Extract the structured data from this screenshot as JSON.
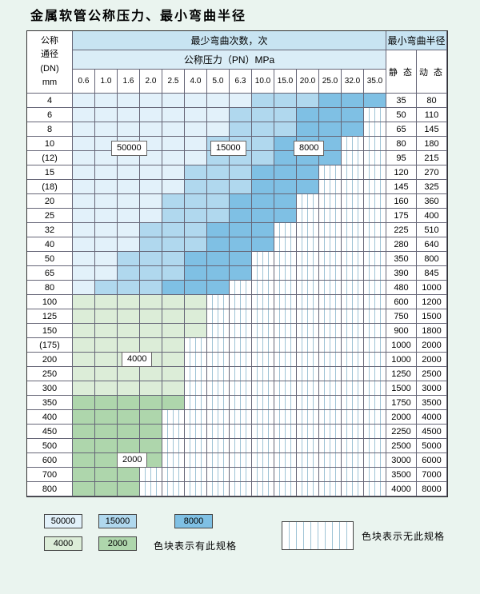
{
  "title": "金属软管公称压力、最小弯曲半径",
  "header": {
    "dn_label_lines": [
      "公称",
      "通径",
      "(DN)",
      "mm"
    ],
    "bend_cycles_label": "最少弯曲次数，次",
    "pressure_label": "公称压力（PN）MPa",
    "pressure_columns": [
      "0.6",
      "1.0",
      "1.6",
      "2.0",
      "2.5",
      "4.0",
      "5.0",
      "6.3",
      "10.0",
      "15.0",
      "20.0",
      "25.0",
      "32.0",
      "35.0"
    ],
    "radius_label": "最小弯曲半径",
    "static_label": "静 态",
    "dynamic_label": "动 态"
  },
  "colors": {
    "c50000": "#e2f1fa",
    "c15000": "#b0d8ee",
    "c8000": "#7fc0e4",
    "c4000": "#dcedd8",
    "c2000": "#aed6ac",
    "hatch_line": "#9fc3d6",
    "header1": "#c8e4f2",
    "header2": "#daedf7",
    "page_bg": "#eaf4ef"
  },
  "rows": [
    {
      "dn": "4",
      "static": "35",
      "dynamic": "80",
      "cells": [
        "50000",
        "50000",
        "50000",
        "50000",
        "50000",
        "50000",
        "50000",
        "50000",
        "15000",
        "15000",
        "15000",
        "8000",
        "8000",
        "8000"
      ]
    },
    {
      "dn": "6",
      "static": "50",
      "dynamic": "110",
      "cells": [
        "50000",
        "50000",
        "50000",
        "50000",
        "50000",
        "50000",
        "50000",
        "15000",
        "15000",
        "15000",
        "8000",
        "8000",
        "8000",
        "none"
      ]
    },
    {
      "dn": "8",
      "static": "65",
      "dynamic": "145",
      "cells": [
        "50000",
        "50000",
        "50000",
        "50000",
        "50000",
        "50000",
        "50000",
        "15000",
        "15000",
        "15000",
        "8000",
        "8000",
        "8000",
        "none"
      ]
    },
    {
      "dn": "10",
      "static": "80",
      "dynamic": "180",
      "cells": [
        "50000",
        "50000",
        "50000",
        "50000",
        "50000",
        "50000",
        "15000",
        "15000",
        "15000",
        "8000",
        "8000",
        "8000",
        "none",
        "none"
      ]
    },
    {
      "dn": "(12)",
      "static": "95",
      "dynamic": "215",
      "cells": [
        "50000",
        "50000",
        "50000",
        "50000",
        "50000",
        "50000",
        "15000",
        "15000",
        "15000",
        "8000",
        "8000",
        "8000",
        "none",
        "none"
      ]
    },
    {
      "dn": "15",
      "static": "120",
      "dynamic": "270",
      "cells": [
        "50000",
        "50000",
        "50000",
        "50000",
        "50000",
        "15000",
        "15000",
        "15000",
        "8000",
        "8000",
        "8000",
        "none",
        "none",
        "none"
      ]
    },
    {
      "dn": "(18)",
      "static": "145",
      "dynamic": "325",
      "cells": [
        "50000",
        "50000",
        "50000",
        "50000",
        "50000",
        "15000",
        "15000",
        "15000",
        "8000",
        "8000",
        "8000",
        "none",
        "none",
        "none"
      ]
    },
    {
      "dn": "20",
      "static": "160",
      "dynamic": "360",
      "cells": [
        "50000",
        "50000",
        "50000",
        "50000",
        "15000",
        "15000",
        "15000",
        "8000",
        "8000",
        "8000",
        "none",
        "none",
        "none",
        "none"
      ]
    },
    {
      "dn": "25",
      "static": "175",
      "dynamic": "400",
      "cells": [
        "50000",
        "50000",
        "50000",
        "50000",
        "15000",
        "15000",
        "15000",
        "8000",
        "8000",
        "8000",
        "none",
        "none",
        "none",
        "none"
      ]
    },
    {
      "dn": "32",
      "static": "225",
      "dynamic": "510",
      "cells": [
        "50000",
        "50000",
        "50000",
        "15000",
        "15000",
        "15000",
        "8000",
        "8000",
        "8000",
        "none",
        "none",
        "none",
        "none",
        "none"
      ]
    },
    {
      "dn": "40",
      "static": "280",
      "dynamic": "640",
      "cells": [
        "50000",
        "50000",
        "50000",
        "15000",
        "15000",
        "15000",
        "8000",
        "8000",
        "8000",
        "none",
        "none",
        "none",
        "none",
        "none"
      ]
    },
    {
      "dn": "50",
      "static": "350",
      "dynamic": "800",
      "cells": [
        "50000",
        "50000",
        "15000",
        "15000",
        "15000",
        "8000",
        "8000",
        "8000",
        "none",
        "none",
        "none",
        "none",
        "none",
        "none"
      ]
    },
    {
      "dn": "65",
      "static": "390",
      "dynamic": "845",
      "cells": [
        "50000",
        "50000",
        "15000",
        "15000",
        "15000",
        "8000",
        "8000",
        "8000",
        "none",
        "none",
        "none",
        "none",
        "none",
        "none"
      ]
    },
    {
      "dn": "80",
      "static": "480",
      "dynamic": "1000",
      "cells": [
        "50000",
        "15000",
        "15000",
        "15000",
        "8000",
        "8000",
        "8000",
        "none",
        "none",
        "none",
        "none",
        "none",
        "none",
        "none"
      ]
    },
    {
      "dn": "100",
      "static": "600",
      "dynamic": "1200",
      "cells": [
        "4000",
        "4000",
        "4000",
        "4000",
        "4000",
        "4000",
        "none",
        "none",
        "none",
        "none",
        "none",
        "none",
        "none",
        "none"
      ]
    },
    {
      "dn": "125",
      "static": "750",
      "dynamic": "1500",
      "cells": [
        "4000",
        "4000",
        "4000",
        "4000",
        "4000",
        "4000",
        "none",
        "none",
        "none",
        "none",
        "none",
        "none",
        "none",
        "none"
      ]
    },
    {
      "dn": "150",
      "static": "900",
      "dynamic": "1800",
      "cells": [
        "4000",
        "4000",
        "4000",
        "4000",
        "4000",
        "4000",
        "none",
        "none",
        "none",
        "none",
        "none",
        "none",
        "none",
        "none"
      ]
    },
    {
      "dn": "(175)",
      "static": "1000",
      "dynamic": "2000",
      "cells": [
        "4000",
        "4000",
        "4000",
        "4000",
        "4000",
        "none",
        "none",
        "none",
        "none",
        "none",
        "none",
        "none",
        "none",
        "none"
      ]
    },
    {
      "dn": "200",
      "static": "1000",
      "dynamic": "2000",
      "cells": [
        "4000",
        "4000",
        "4000",
        "4000",
        "4000",
        "none",
        "none",
        "none",
        "none",
        "none",
        "none",
        "none",
        "none",
        "none"
      ]
    },
    {
      "dn": "250",
      "static": "1250",
      "dynamic": "2500",
      "cells": [
        "4000",
        "4000",
        "4000",
        "4000",
        "4000",
        "none",
        "none",
        "none",
        "none",
        "none",
        "none",
        "none",
        "none",
        "none"
      ]
    },
    {
      "dn": "300",
      "static": "1500",
      "dynamic": "3000",
      "cells": [
        "4000",
        "4000",
        "4000",
        "4000",
        "4000",
        "none",
        "none",
        "none",
        "none",
        "none",
        "none",
        "none",
        "none",
        "none"
      ]
    },
    {
      "dn": "350",
      "static": "1750",
      "dynamic": "3500",
      "cells": [
        "2000",
        "2000",
        "2000",
        "2000",
        "2000",
        "none",
        "none",
        "none",
        "none",
        "none",
        "none",
        "none",
        "none",
        "none"
      ]
    },
    {
      "dn": "400",
      "static": "2000",
      "dynamic": "4000",
      "cells": [
        "2000",
        "2000",
        "2000",
        "2000",
        "none",
        "none",
        "none",
        "none",
        "none",
        "none",
        "none",
        "none",
        "none",
        "none"
      ]
    },
    {
      "dn": "450",
      "static": "2250",
      "dynamic": "4500",
      "cells": [
        "2000",
        "2000",
        "2000",
        "2000",
        "none",
        "none",
        "none",
        "none",
        "none",
        "none",
        "none",
        "none",
        "none",
        "none"
      ]
    },
    {
      "dn": "500",
      "static": "2500",
      "dynamic": "5000",
      "cells": [
        "2000",
        "2000",
        "2000",
        "2000",
        "none",
        "none",
        "none",
        "none",
        "none",
        "none",
        "none",
        "none",
        "none",
        "none"
      ]
    },
    {
      "dn": "600",
      "static": "3000",
      "dynamic": "6000",
      "cells": [
        "2000",
        "2000",
        "2000",
        "2000",
        "none",
        "none",
        "none",
        "none",
        "none",
        "none",
        "none",
        "none",
        "none",
        "none"
      ]
    },
    {
      "dn": "700",
      "static": "3500",
      "dynamic": "7000",
      "cells": [
        "2000",
        "2000",
        "2000",
        "none",
        "none",
        "none",
        "none",
        "none",
        "none",
        "none",
        "none",
        "none",
        "none",
        "none"
      ]
    },
    {
      "dn": "800",
      "static": "4000",
      "dynamic": "8000",
      "cells": [
        "2000",
        "2000",
        "2000",
        "none",
        "none",
        "none",
        "none",
        "none",
        "none",
        "none",
        "none",
        "none",
        "none",
        "none"
      ]
    }
  ],
  "overlay_labels": [
    "50000",
    "15000",
    "8000",
    "4000",
    "2000"
  ],
  "legend": {
    "items": [
      {
        "value": "50000"
      },
      {
        "value": "15000"
      },
      {
        "value": "8000"
      },
      {
        "value": "4000"
      },
      {
        "value": "2000"
      }
    ],
    "present_note": "色块表示有此规格",
    "absent_note": "色块表示无此规格"
  }
}
